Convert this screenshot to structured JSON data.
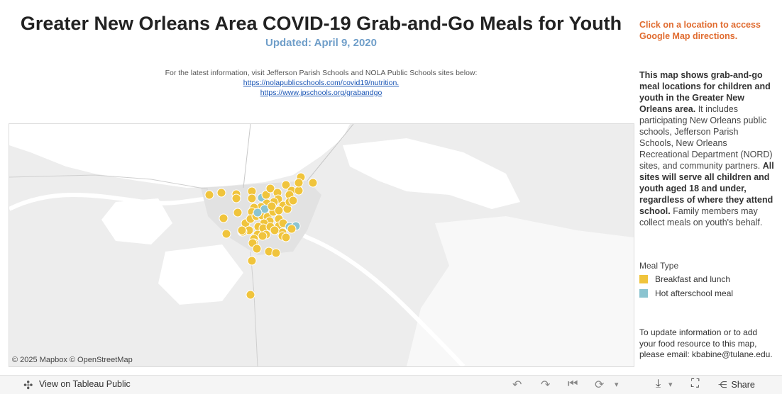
{
  "header": {
    "title": "Greater New Orleans Area COVID-19 Grab-and-Go Meals for Youth",
    "subtitle": "Updated: April 9, 2020"
  },
  "info": {
    "line": "For the latest information, visit Jefferson Parish Schools and NOLA Public Schools sites below:",
    "link1": "https://nolapublicschools.com/covid19/nutrition.",
    "link2": "https://www.jpschools.org/grabandgo"
  },
  "map": {
    "attribution": "© 2025 Mapbox  © OpenStreetMap"
  },
  "sidebar": {
    "hint": "Click on a location to access Google Map directions.",
    "desc_bold1": "This map shows grab-and-go meal locations for children and youth in the Greater New Orleans area.",
    "desc_plain1": " It includes participating New Orleans public schools, Jefferson Parish Schools, New Orleans Recreational Department (NORD) sites, and community partners. ",
    "desc_bold2": "All sites will serve all children and youth aged 18 and under, regardless of where they attend school.",
    "desc_plain2": " Family members may collect meals on youth's behalf.",
    "legend_title": "Meal Type",
    "legend": [
      {
        "label": "Breakfast and lunch",
        "color": "#f0c43c"
      },
      {
        "label": "Hot afterschool meal",
        "color": "#8bc4d0"
      }
    ],
    "update": "To update information or to add your food resource to this map, please email: kbabine@tulane.edu."
  },
  "footer": {
    "view_label": "View on Tableau Public",
    "share_label": "Share"
  }
}
